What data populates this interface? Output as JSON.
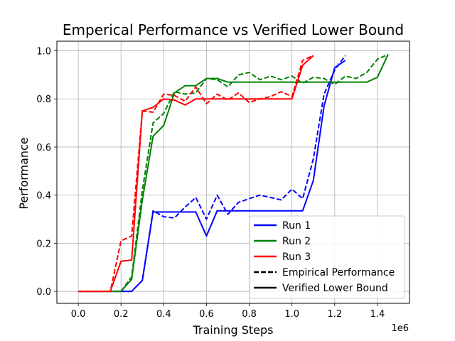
{
  "chart_data": {
    "type": "line",
    "title": "Emperical Performance vs Verified Lower Bound",
    "xlabel": "Training Steps",
    "ylabel": "Performance",
    "x_offset_label": "1e6",
    "xlim": [
      -0.1,
      1.55
    ],
    "ylim": [
      -0.05,
      1.04
    ],
    "xticks": [
      0.0,
      0.2,
      0.4,
      0.6,
      0.8,
      1.0,
      1.2,
      1.4
    ],
    "xtick_labels": [
      "0.0",
      "0.2",
      "0.4",
      "0.6",
      "0.8",
      "1.0",
      "1.2",
      "1.4"
    ],
    "yticks": [
      0.0,
      0.2,
      0.4,
      0.6,
      0.8,
      1.0
    ],
    "ytick_labels": [
      "0.0",
      "0.2",
      "0.4",
      "0.6",
      "0.8",
      "1.0"
    ],
    "grid": true,
    "legend_position": "lower-right",
    "legend": [
      {
        "label": "Run 1",
        "color": "#0000ff",
        "style": "solid"
      },
      {
        "label": "Run 2",
        "color": "#008000",
        "style": "solid"
      },
      {
        "label": "Run 3",
        "color": "#ff0000",
        "style": "solid"
      },
      {
        "label": "Empirical Performance",
        "color": "#000000",
        "style": "dashed"
      },
      {
        "label": "Verified Lower Bound",
        "color": "#000000",
        "style": "solid"
      }
    ],
    "series": [
      {
        "run": "Run 1",
        "kind": "Verified Lower Bound",
        "color": "#0000ff",
        "dashed": false,
        "x": [
          0.0,
          0.05,
          0.1,
          0.15,
          0.2,
          0.25,
          0.3,
          0.35,
          0.4,
          0.45,
          0.5,
          0.55,
          0.6,
          0.65,
          0.7,
          0.75,
          0.8,
          0.85,
          0.9,
          0.95,
          1.0,
          1.05,
          1.1,
          1.15,
          1.2,
          1.25
        ],
        "y": [
          0.0,
          0.0,
          0.0,
          0.0,
          0.0,
          0.0,
          0.045,
          0.33,
          0.33,
          0.33,
          0.33,
          0.33,
          0.23,
          0.335,
          0.335,
          0.335,
          0.335,
          0.335,
          0.335,
          0.335,
          0.335,
          0.335,
          0.46,
          0.77,
          0.93,
          0.96
        ]
      },
      {
        "run": "Run 1",
        "kind": "Empirical Performance",
        "color": "#0000ff",
        "dashed": true,
        "x": [
          0.0,
          0.05,
          0.1,
          0.15,
          0.2,
          0.25,
          0.3,
          0.35,
          0.4,
          0.45,
          0.5,
          0.55,
          0.6,
          0.65,
          0.7,
          0.75,
          0.8,
          0.85,
          0.9,
          0.95,
          1.0,
          1.05,
          1.1,
          1.15,
          1.2,
          1.25
        ],
        "y": [
          0.0,
          0.0,
          0.0,
          0.0,
          0.0,
          0.0,
          0.045,
          0.335,
          0.31,
          0.305,
          0.35,
          0.39,
          0.3,
          0.4,
          0.32,
          0.37,
          0.385,
          0.4,
          0.39,
          0.38,
          0.425,
          0.385,
          0.55,
          0.82,
          0.92,
          0.98
        ]
      },
      {
        "run": "Run 2",
        "kind": "Verified Lower Bound",
        "color": "#008000",
        "dashed": false,
        "x": [
          0.0,
          0.05,
          0.1,
          0.15,
          0.2,
          0.25,
          0.3,
          0.35,
          0.4,
          0.45,
          0.5,
          0.55,
          0.6,
          0.65,
          0.7,
          0.75,
          0.8,
          0.85,
          0.9,
          0.95,
          1.0,
          1.05,
          1.1,
          1.15,
          1.2,
          1.25,
          1.3,
          1.35,
          1.4,
          1.45
        ],
        "y": [
          0.0,
          0.0,
          0.0,
          0.0,
          0.0,
          0.05,
          0.38,
          0.645,
          0.69,
          0.825,
          0.855,
          0.855,
          0.885,
          0.885,
          0.87,
          0.87,
          0.87,
          0.87,
          0.87,
          0.87,
          0.87,
          0.87,
          0.87,
          0.87,
          0.87,
          0.87,
          0.87,
          0.87,
          0.89,
          0.985
        ]
      },
      {
        "run": "Run 2",
        "kind": "Empirical Performance",
        "color": "#008000",
        "dashed": true,
        "x": [
          0.0,
          0.05,
          0.1,
          0.15,
          0.2,
          0.25,
          0.3,
          0.35,
          0.4,
          0.45,
          0.5,
          0.55,
          0.6,
          0.65,
          0.7,
          0.75,
          0.8,
          0.85,
          0.9,
          0.95,
          1.0,
          1.05,
          1.1,
          1.15,
          1.2,
          1.25,
          1.3,
          1.35,
          1.4,
          1.45
        ],
        "y": [
          0.0,
          0.0,
          0.0,
          0.0,
          0.0,
          0.06,
          0.42,
          0.7,
          0.74,
          0.83,
          0.82,
          0.825,
          0.885,
          0.88,
          0.85,
          0.9,
          0.91,
          0.88,
          0.895,
          0.88,
          0.895,
          0.865,
          0.89,
          0.885,
          0.86,
          0.895,
          0.885,
          0.91,
          0.965,
          0.985
        ]
      },
      {
        "run": "Run 3",
        "kind": "Verified Lower Bound",
        "color": "#ff0000",
        "dashed": false,
        "x": [
          0.0,
          0.05,
          0.1,
          0.15,
          0.2,
          0.25,
          0.3,
          0.35,
          0.4,
          0.45,
          0.5,
          0.55,
          0.6,
          0.65,
          0.7,
          0.75,
          0.8,
          0.85,
          0.9,
          0.95,
          1.0,
          1.05,
          1.1
        ],
        "y": [
          0.0,
          0.0,
          0.0,
          0.0,
          0.125,
          0.13,
          0.75,
          0.765,
          0.8,
          0.795,
          0.775,
          0.8,
          0.8,
          0.8,
          0.8,
          0.8,
          0.8,
          0.8,
          0.8,
          0.8,
          0.8,
          0.94,
          0.98
        ]
      },
      {
        "run": "Run 3",
        "kind": "Empirical Performance",
        "color": "#ff0000",
        "dashed": true,
        "x": [
          0.0,
          0.05,
          0.1,
          0.15,
          0.2,
          0.25,
          0.3,
          0.35,
          0.4,
          0.45,
          0.5,
          0.55,
          0.6,
          0.65,
          0.7,
          0.75,
          0.8,
          0.85,
          0.9,
          0.95,
          1.0,
          1.05,
          1.1
        ],
        "y": [
          0.0,
          0.0,
          0.0,
          0.0,
          0.21,
          0.23,
          0.75,
          0.745,
          0.82,
          0.815,
          0.79,
          0.85,
          0.78,
          0.82,
          0.795,
          0.825,
          0.785,
          0.8,
          0.81,
          0.83,
          0.81,
          0.96,
          0.98
        ]
      }
    ]
  }
}
